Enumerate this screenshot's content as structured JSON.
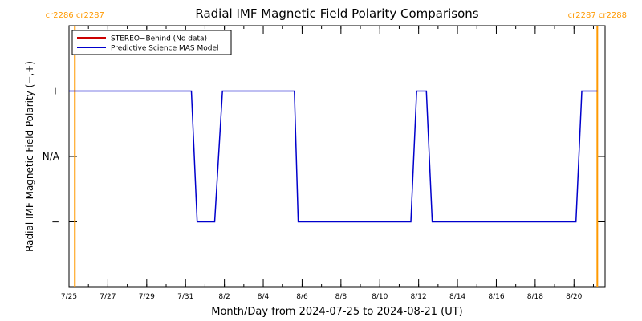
{
  "chart_data": {
    "type": "line",
    "title": "Radial IMF Magnetic Field Polarity Comparisons",
    "xlabel": "Month/Day from 2024-07-25 to 2024-08-21 (UT)",
    "ylabel": "Radial IMF Magnetic Field Polarity (−,+)",
    "x_range_days": [
      0,
      27.6
    ],
    "x_ticks": [
      {
        "day": 0,
        "label": "7/25"
      },
      {
        "day": 2,
        "label": "7/27"
      },
      {
        "day": 4,
        "label": "7/29"
      },
      {
        "day": 6,
        "label": "7/31"
      },
      {
        "day": 8,
        "label": "8/2"
      },
      {
        "day": 10,
        "label": "8/4"
      },
      {
        "day": 12,
        "label": "8/6"
      },
      {
        "day": 14,
        "label": "8/8"
      },
      {
        "day": 16,
        "label": "8/10"
      },
      {
        "day": 18,
        "label": "8/12"
      },
      {
        "day": 20,
        "label": "8/14"
      },
      {
        "day": 22,
        "label": "8/16"
      },
      {
        "day": 24,
        "label": "8/18"
      },
      {
        "day": 26,
        "label": "8/20"
      }
    ],
    "y_range": [
      -2,
      2
    ],
    "y_ticks": [
      {
        "value": 1,
        "label": "+"
      },
      {
        "value": 0,
        "label": "N/A"
      },
      {
        "value": -1,
        "label": "−"
      }
    ],
    "legend": {
      "placement": "top-left",
      "entries": [
        {
          "name": "STEREO−Behind (No data)",
          "color": "#cc0000"
        },
        {
          "name": "Predictive Science MAS Model",
          "color": "#0000cc"
        }
      ]
    },
    "carrington_markers": [
      {
        "day": 0.3,
        "label": "cr2286 cr2287"
      },
      {
        "day": 27.2,
        "label": "cr2287 cr2288"
      }
    ],
    "marker_color": "#ff9900",
    "series": [
      {
        "name": "Predictive Science MAS Model",
        "color": "#0000cc",
        "points": [
          [
            0,
            1
          ],
          [
            6.3,
            1
          ],
          [
            6.6,
            -1
          ],
          [
            7.5,
            -1
          ],
          [
            7.9,
            1
          ],
          [
            11.6,
            1
          ],
          [
            11.8,
            -1
          ],
          [
            17.6,
            -1
          ],
          [
            17.9,
            1
          ],
          [
            18.4,
            1
          ],
          [
            18.7,
            -1
          ],
          [
            26.1,
            -1
          ],
          [
            26.4,
            1
          ],
          [
            27.2,
            1
          ]
        ]
      }
    ]
  }
}
